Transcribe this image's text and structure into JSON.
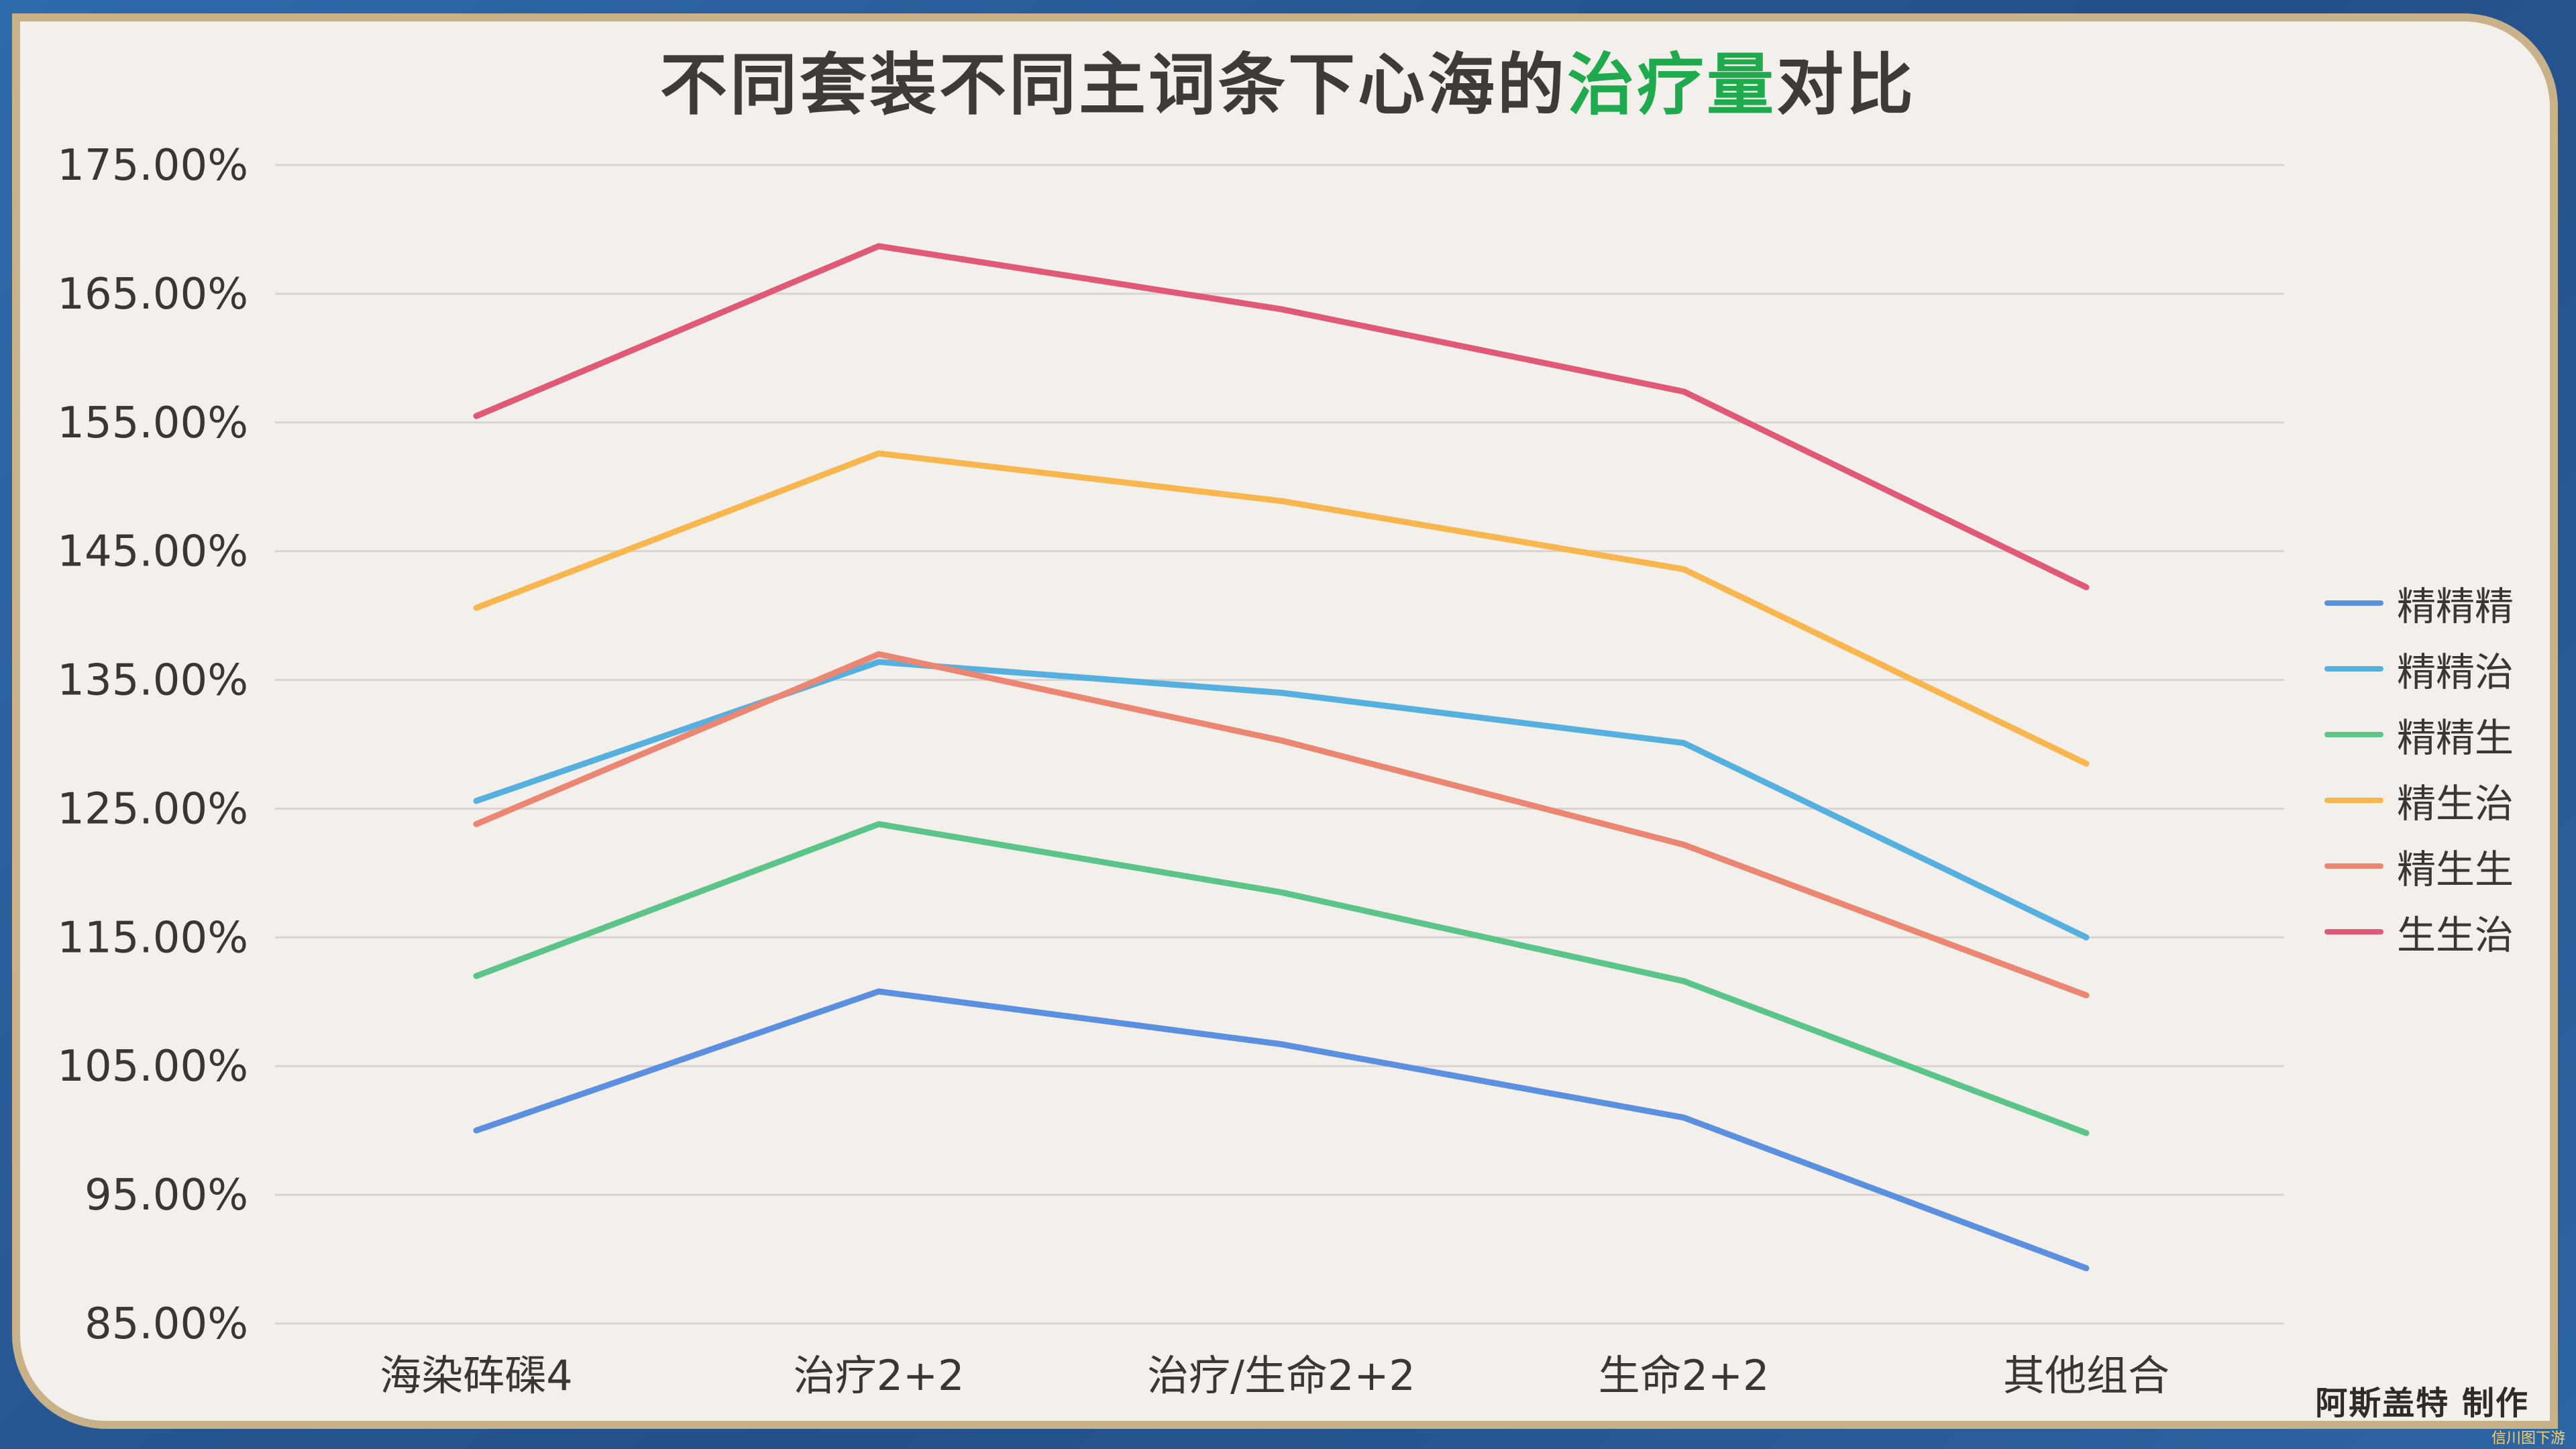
{
  "title": {
    "prefix": "不同套装不同主词条下心海的",
    "highlight": "治疗量",
    "suffix": "对比"
  },
  "credit": "阿斯盖特 制作",
  "watermark": "信川图下游",
  "colors": {
    "title_highlight": "#1faa4d",
    "frame_blue": "#2a5c99",
    "card_bg": "#f3efeb",
    "border_gold": "#c9b28a"
  },
  "chart_data": {
    "type": "line",
    "title": "不同套装不同主词条下心海的治疗量对比",
    "xlabel": "",
    "ylabel": "",
    "categories": [
      "海染砗磲4",
      "治疗2+2",
      "治疗/生命2+2",
      "生命2+2",
      "其他组合"
    ],
    "ylim": [
      85,
      175
    ],
    "yticks": [
      "175.00%",
      "165.00%",
      "155.00%",
      "145.00%",
      "135.00%",
      "125.00%",
      "115.00%",
      "105.00%",
      "95.00%",
      "85.00%"
    ],
    "ytick_values": [
      175,
      165,
      155,
      145,
      135,
      125,
      115,
      105,
      95,
      85
    ],
    "grid": true,
    "legend_position": "right",
    "series": [
      {
        "name": "精精精",
        "color": "#5b8fe0",
        "values": [
          100.0,
          110.8,
          106.7,
          101.0,
          89.3
        ]
      },
      {
        "name": "精精治",
        "color": "#55b0e0",
        "values": [
          125.6,
          136.4,
          134.0,
          130.1,
          115.0
        ]
      },
      {
        "name": "精精生",
        "color": "#5ac489",
        "values": [
          112.0,
          123.8,
          118.5,
          111.6,
          99.8
        ]
      },
      {
        "name": "精生治",
        "color": "#f8b64f",
        "values": [
          140.6,
          152.6,
          148.9,
          143.6,
          128.5
        ]
      },
      {
        "name": "精生生",
        "color": "#ea8672",
        "values": [
          123.8,
          137.0,
          130.3,
          122.2,
          110.5
        ]
      },
      {
        "name": "生生治",
        "color": "#e05a78",
        "values": [
          155.5,
          168.7,
          163.8,
          157.4,
          142.2
        ]
      }
    ]
  }
}
